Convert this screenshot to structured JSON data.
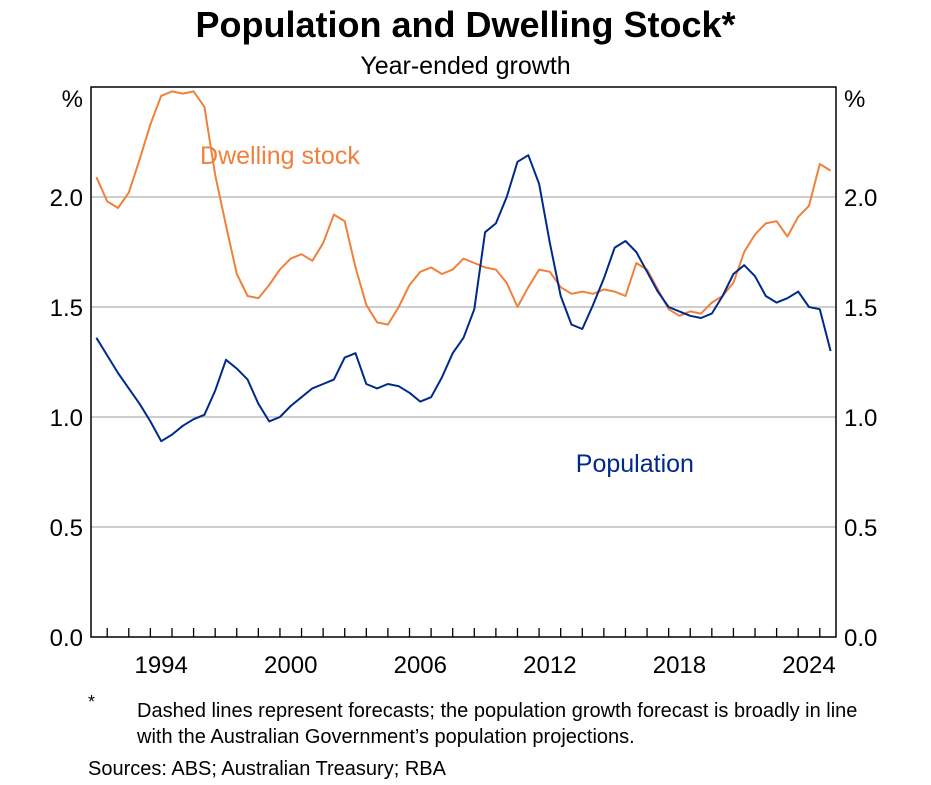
{
  "header": {
    "title": "Population and Dwelling Stock*",
    "subtitle": "Year-ended growth"
  },
  "footnote": {
    "mark": "*",
    "text": "Dashed lines represent forecasts; the population growth forecast is broadly in line with the Australian Government’s population projections.",
    "sources": "Sources: ABS; Australian Treasury; RBA"
  },
  "chart_data": {
    "type": "line",
    "title": "Population and Dwelling Stock*",
    "subtitle": "Year-ended growth",
    "y_unit_left": "%",
    "y_unit_right": "%",
    "ylim": [
      0,
      2.5
    ],
    "yticks": [
      0.0,
      0.5,
      1.0,
      1.5,
      2.0
    ],
    "ytick_labels": [
      "0.0",
      "0.5",
      "1.0",
      "1.5",
      "2.0"
    ],
    "xlim": [
      1991.25,
      2025.75
    ],
    "xticks": [
      1994,
      2000,
      2006,
      2012,
      2018,
      2024
    ],
    "xtick_labels": [
      "1994",
      "2000",
      "2006",
      "2012",
      "2018",
      "2024"
    ],
    "grid": true,
    "colors": {
      "dwelling": "#f0803c",
      "population": "#002a8a",
      "grid": "#b0b0b0"
    },
    "series": [
      {
        "name": "Dwelling stock",
        "color": "#f0803c",
        "actual": [
          [
            1991.5,
            2.09
          ],
          [
            1992.0,
            1.98
          ],
          [
            1992.5,
            1.95
          ],
          [
            1993.0,
            2.02
          ],
          [
            1993.5,
            2.17
          ],
          [
            1994.0,
            2.33
          ],
          [
            1994.5,
            2.46
          ],
          [
            1995.0,
            2.48
          ],
          [
            1995.5,
            2.47
          ],
          [
            1996.0,
            2.48
          ],
          [
            1996.5,
            2.41
          ],
          [
            1997.0,
            2.1
          ],
          [
            1997.5,
            1.87
          ],
          [
            1998.0,
            1.65
          ],
          [
            1998.5,
            1.55
          ],
          [
            1999.0,
            1.54
          ],
          [
            1999.5,
            1.6
          ],
          [
            2000.0,
            1.67
          ],
          [
            2000.5,
            1.72
          ],
          [
            2001.0,
            1.74
          ],
          [
            2001.5,
            1.71
          ],
          [
            2002.0,
            1.79
          ],
          [
            2002.5,
            1.92
          ],
          [
            2003.0,
            1.89
          ],
          [
            2003.5,
            1.68
          ],
          [
            2004.0,
            1.51
          ],
          [
            2004.5,
            1.43
          ],
          [
            2005.0,
            1.42
          ],
          [
            2005.5,
            1.5
          ],
          [
            2006.0,
            1.6
          ],
          [
            2006.5,
            1.66
          ],
          [
            2007.0,
            1.68
          ],
          [
            2007.5,
            1.65
          ],
          [
            2008.0,
            1.67
          ],
          [
            2008.5,
            1.72
          ],
          [
            2009.0,
            1.7
          ],
          [
            2009.5,
            1.68
          ],
          [
            2010.0,
            1.67
          ],
          [
            2010.5,
            1.61
          ],
          [
            2011.0,
            1.5
          ],
          [
            2011.5,
            1.59
          ],
          [
            2012.0,
            1.67
          ],
          [
            2012.5,
            1.66
          ],
          [
            2013.0,
            1.59
          ],
          [
            2013.5,
            1.56
          ],
          [
            2014.0,
            1.57
          ],
          [
            2014.5,
            1.56
          ],
          [
            2015.0,
            1.58
          ],
          [
            2015.5,
            1.57
          ],
          [
            2016.0,
            1.55
          ],
          [
            2016.5,
            1.7
          ],
          [
            2017.0,
            1.67
          ],
          [
            2017.5,
            1.58
          ],
          [
            2018.0,
            1.49
          ],
          [
            2018.5,
            1.46
          ],
          [
            2019.0,
            1.48
          ],
          [
            2019.5,
            1.47
          ],
          [
            2020.0,
            1.52
          ],
          [
            2020.5,
            1.55
          ],
          [
            2021.0,
            1.61
          ],
          [
            2021.5,
            1.75
          ],
          [
            2022.0,
            1.83
          ],
          [
            2022.5,
            1.88
          ],
          [
            2023.0,
            1.89
          ],
          [
            2023.5,
            1.82
          ],
          [
            2024.0,
            1.91
          ],
          [
            2024.5,
            1.96
          ],
          [
            2025.0,
            2.15
          ],
          [
            2025.5,
            2.12
          ]
        ]
      },
      {
        "name": "Population",
        "color": "#002a8a",
        "actual": [
          [
            1991.5,
            1.36
          ],
          [
            1992.0,
            1.28
          ],
          [
            1992.5,
            1.2
          ],
          [
            1993.0,
            1.13
          ],
          [
            1993.5,
            1.06
          ],
          [
            1994.0,
            0.98
          ],
          [
            1994.5,
            0.89
          ],
          [
            1995.0,
            0.92
          ],
          [
            1995.5,
            0.96
          ],
          [
            1996.0,
            0.99
          ],
          [
            1996.5,
            1.01
          ],
          [
            1997.0,
            1.12
          ],
          [
            1997.5,
            1.26
          ],
          [
            1998.0,
            1.22
          ],
          [
            1998.5,
            1.17
          ],
          [
            1999.0,
            1.06
          ],
          [
            1999.5,
            0.98
          ],
          [
            2000.0,
            1.0
          ],
          [
            2000.5,
            1.05
          ],
          [
            2001.0,
            1.09
          ],
          [
            2001.5,
            1.13
          ],
          [
            2002.0,
            1.15
          ],
          [
            2002.5,
            1.17
          ],
          [
            2003.0,
            1.27
          ],
          [
            2003.5,
            1.29
          ],
          [
            2004.0,
            1.15
          ],
          [
            2004.5,
            1.13
          ],
          [
            2005.0,
            1.15
          ],
          [
            2005.5,
            1.14
          ],
          [
            2006.0,
            1.11
          ],
          [
            2006.5,
            1.07
          ],
          [
            2007.0,
            1.09
          ],
          [
            2007.5,
            1.18
          ],
          [
            2008.0,
            1.29
          ],
          [
            2008.5,
            1.36
          ],
          [
            2009.0,
            1.49
          ],
          [
            2009.5,
            1.84
          ],
          [
            2010.0,
            1.88
          ],
          [
            2010.5,
            2.0
          ],
          [
            2011.0,
            2.16
          ],
          [
            2011.5,
            2.19
          ],
          [
            2012.0,
            2.06
          ],
          [
            2012.5,
            1.79
          ],
          [
            2013.0,
            1.55
          ],
          [
            2013.5,
            1.42
          ],
          [
            2014.0,
            1.4
          ],
          [
            2014.5,
            1.51
          ],
          [
            2015.0,
            1.63
          ],
          [
            2015.5,
            1.77
          ],
          [
            2016.0,
            1.8
          ],
          [
            2016.5,
            1.75
          ],
          [
            2017.0,
            1.66
          ],
          [
            2017.5,
            1.57
          ],
          [
            2018.0,
            1.5
          ],
          [
            2018.5,
            1.48
          ],
          [
            2019.0,
            1.46
          ],
          [
            2019.5,
            1.45
          ],
          [
            2020.0,
            1.47
          ],
          [
            2020.5,
            1.55
          ],
          [
            2021.0,
            1.65
          ],
          [
            2021.5,
            1.69
          ],
          [
            2022.0,
            1.64
          ],
          [
            2022.5,
            1.55
          ],
          [
            2023.0,
            1.52
          ],
          [
            2023.5,
            1.54
          ],
          [
            2024.0,
            1.57
          ],
          [
            2024.5,
            1.5
          ],
          [
            2025.0,
            1.49
          ],
          [
            2025.5,
            1.3
          ]
        ]
      }
    ],
    "series_labels": [
      {
        "name": "Dwelling stock",
        "color": "#f0803c"
      },
      {
        "name": "Population",
        "color": "#002a8a"
      }
    ]
  }
}
